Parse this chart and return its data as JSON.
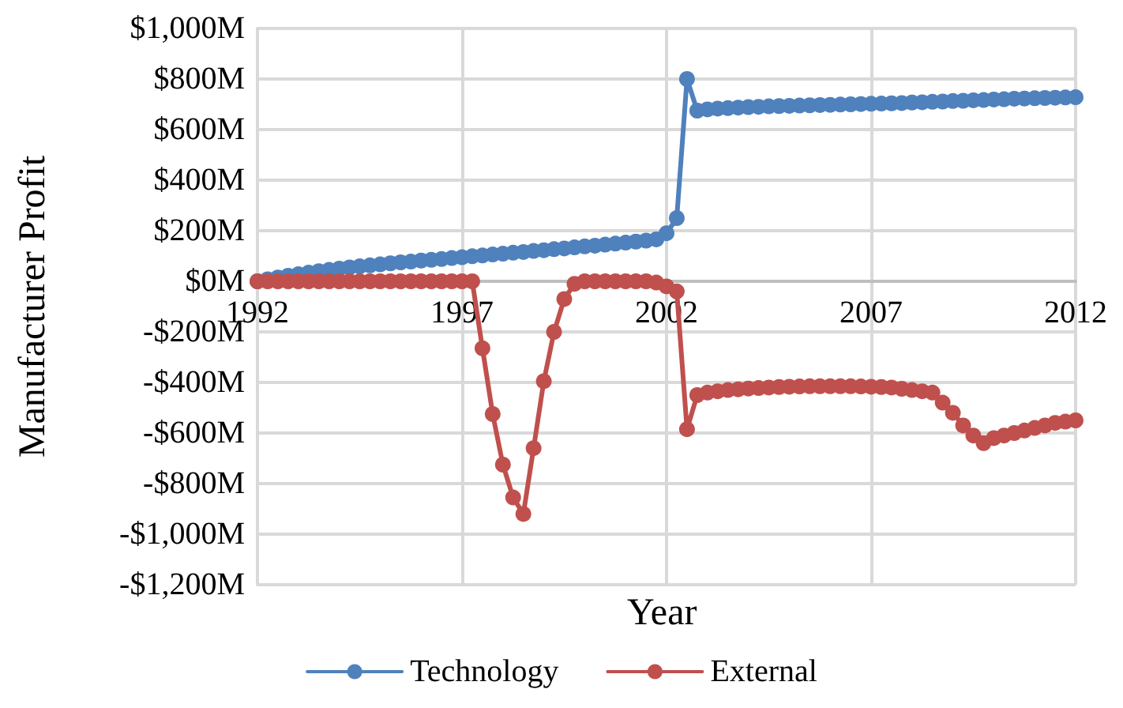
{
  "chart_data": {
    "type": "line",
    "xlabel": "Year",
    "ylabel": "Manufacturer Profit",
    "x": [
      1992,
      1992.25,
      1992.5,
      1992.75,
      1993,
      1993.25,
      1993.5,
      1993.75,
      1994,
      1994.25,
      1994.5,
      1994.75,
      1995,
      1995.25,
      1995.5,
      1995.75,
      1996,
      1996.25,
      1996.5,
      1996.75,
      1997,
      1997.25,
      1997.5,
      1997.75,
      1998,
      1998.25,
      1998.5,
      1998.75,
      1999,
      1999.25,
      1999.5,
      1999.75,
      2000,
      2000.25,
      2000.5,
      2000.75,
      2001,
      2001.25,
      2001.5,
      2001.75,
      2002,
      2002.25,
      2002.5,
      2002.75,
      2003,
      2003.25,
      2003.5,
      2003.75,
      2004,
      2004.25,
      2004.5,
      2004.75,
      2005,
      2005.25,
      2005.5,
      2005.75,
      2006,
      2006.25,
      2006.5,
      2006.75,
      2007,
      2007.25,
      2007.5,
      2007.75,
      2008,
      2008.25,
      2008.5,
      2008.75,
      2009,
      2009.25,
      2009.5,
      2009.75,
      2010,
      2010.25,
      2010.5,
      2010.75,
      2011,
      2011.25,
      2011.5,
      2011.75,
      2012
    ],
    "series": [
      {
        "name": "Technology",
        "color": "#4f81bd",
        "values": [
          0,
          8,
          15,
          22,
          28,
          34,
          40,
          45,
          50,
          55,
          59,
          63,
          67,
          71,
          75,
          78,
          82,
          85,
          88,
          92,
          95,
          99,
          102,
          106,
          109,
          113,
          116,
          120,
          123,
          127,
          130,
          134,
          138,
          141,
          145,
          149,
          153,
          157,
          161,
          166,
          190,
          250,
          800,
          675,
          680,
          683,
          685,
          687,
          689,
          690,
          692,
          693,
          694,
          695,
          696,
          697,
          698,
          699,
          700,
          701,
          702,
          703,
          704,
          705,
          707,
          708,
          710,
          711,
          713,
          714,
          716,
          717,
          719,
          720,
          722,
          723,
          724,
          725,
          726,
          727,
          728
        ]
      },
      {
        "name": "External",
        "color": "#c0504d",
        "values": [
          0,
          0,
          0,
          0,
          0,
          0,
          0,
          0,
          0,
          0,
          0,
          0,
          0,
          0,
          0,
          0,
          0,
          0,
          0,
          0,
          0,
          0,
          -265,
          -525,
          -725,
          -855,
          -920,
          -660,
          -395,
          -200,
          -70,
          -10,
          0,
          0,
          0,
          0,
          0,
          0,
          0,
          -5,
          -20,
          -40,
          -585,
          -450,
          -440,
          -435,
          -430,
          -427,
          -424,
          -422,
          -420,
          -418,
          -417,
          -416,
          -415,
          -415,
          -415,
          -415,
          -415,
          -416,
          -417,
          -418,
          -420,
          -425,
          -430,
          -435,
          -440,
          -480,
          -520,
          -570,
          -610,
          -640,
          -620,
          -610,
          -600,
          -590,
          -580,
          -570,
          -560,
          -555,
          -550
        ]
      }
    ],
    "xlim": [
      1992,
      2012
    ],
    "xticks": [
      1992,
      1997,
      2002,
      2007,
      2012
    ],
    "ylim": [
      -1200,
      1000
    ],
    "yticks": [
      {
        "value": -1200,
        "label": "-$1,200M"
      },
      {
        "value": -1000,
        "label": "-$1,000M"
      },
      {
        "value": -800,
        "label": "-$800M"
      },
      {
        "value": -600,
        "label": "-$600M"
      },
      {
        "value": -400,
        "label": "-$400M"
      },
      {
        "value": -200,
        "label": "-$200M"
      },
      {
        "value": 0,
        "label": "$0M"
      },
      {
        "value": 200,
        "label": "$200M"
      },
      {
        "value": 400,
        "label": "$400M"
      },
      {
        "value": 600,
        "label": "$600M"
      },
      {
        "value": 800,
        "label": "$800M"
      },
      {
        "value": 1000,
        "label": "$1,000M"
      }
    ],
    "grid": true,
    "legend": "bottom",
    "marker": "circle",
    "line_style": "solid"
  }
}
